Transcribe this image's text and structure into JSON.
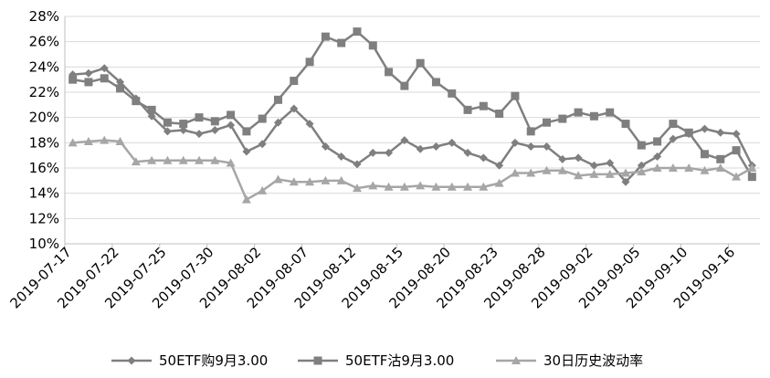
{
  "chart_data": {
    "type": "line",
    "title": "",
    "xlabel": "",
    "ylabel": "",
    "ylim": [
      0.1,
      0.28
    ],
    "y_ticks": [
      "10%",
      "12%",
      "14%",
      "16%",
      "18%",
      "20%",
      "22%",
      "24%",
      "26%",
      "28%"
    ],
    "x_tick_labels": [
      {
        "index": 0,
        "label": "2019-07-17"
      },
      {
        "index": 3,
        "label": "2019-07-22"
      },
      {
        "index": 6,
        "label": "2019-07-25"
      },
      {
        "index": 9,
        "label": "2019-07-30"
      },
      {
        "index": 12,
        "label": "2019-08-02"
      },
      {
        "index": 15,
        "label": "2019-08-07"
      },
      {
        "index": 18,
        "label": "2019-08-12"
      },
      {
        "index": 21,
        "label": "2019-08-15"
      },
      {
        "index": 24,
        "label": "2019-08-20"
      },
      {
        "index": 27,
        "label": "2019-08-23"
      },
      {
        "index": 30,
        "label": "2019-08-28"
      },
      {
        "index": 33,
        "label": "2019-09-02"
      },
      {
        "index": 36,
        "label": "2019-09-05"
      },
      {
        "index": 39,
        "label": "2019-09-10"
      },
      {
        "index": 42,
        "label": "2019-09-16"
      }
    ],
    "grid": "horizontal",
    "legend_position": "bottom",
    "series": [
      {
        "name": "50ETF购9月3.00",
        "marker": "diamond",
        "color": "#7f7f7f",
        "values": [
          0.234,
          0.235,
          0.239,
          0.228,
          0.215,
          0.201,
          0.189,
          0.19,
          0.187,
          0.19,
          0.194,
          0.173,
          0.179,
          0.196,
          0.207,
          0.195,
          0.177,
          0.169,
          0.163,
          0.172,
          0.172,
          0.182,
          0.175,
          0.177,
          0.18,
          0.172,
          0.168,
          0.162,
          0.18,
          0.177,
          0.177,
          0.167,
          0.168,
          0.162,
          0.164,
          0.149,
          0.162,
          0.169,
          0.183,
          0.187,
          0.191,
          0.188,
          0.187,
          0.162
        ]
      },
      {
        "name": "50ETF沽9月3.00",
        "marker": "square",
        "color": "#7f7f7f",
        "values": [
          0.23,
          0.228,
          0.231,
          0.223,
          0.213,
          0.206,
          0.196,
          0.195,
          0.2,
          0.197,
          0.202,
          0.189,
          0.199,
          0.214,
          0.229,
          0.244,
          0.264,
          0.259,
          0.268,
          0.257,
          0.236,
          0.225,
          0.243,
          0.228,
          0.219,
          0.206,
          0.209,
          0.203,
          0.217,
          0.189,
          0.196,
          0.199,
          0.204,
          0.201,
          0.204,
          0.195,
          0.178,
          0.181,
          0.195,
          0.188,
          0.171,
          0.167,
          0.174,
          0.153
        ]
      },
      {
        "name": "30日历史波动率",
        "marker": "triangle",
        "color": "#a6a6a6",
        "values": [
          0.18,
          0.181,
          0.182,
          0.181,
          0.165,
          0.166,
          0.166,
          0.166,
          0.166,
          0.166,
          0.164,
          0.135,
          0.142,
          0.151,
          0.149,
          0.149,
          0.15,
          0.15,
          0.144,
          0.146,
          0.145,
          0.145,
          0.146,
          0.145,
          0.145,
          0.145,
          0.145,
          0.148,
          0.156,
          0.156,
          0.158,
          0.158,
          0.154,
          0.155,
          0.155,
          0.156,
          0.157,
          0.16,
          0.16,
          0.16,
          0.158,
          0.16,
          0.153,
          0.16
        ]
      }
    ]
  }
}
